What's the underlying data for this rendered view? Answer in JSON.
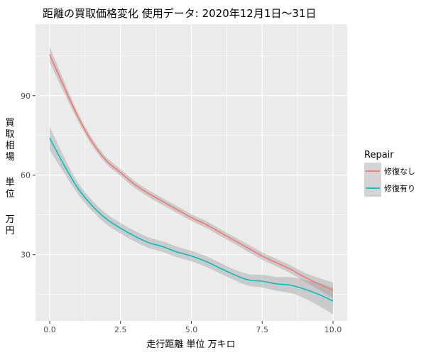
{
  "chart_data": {
    "type": "line",
    "title": "距離の買取価格変化 使用データ: 2020年12月1日～31日",
    "xlabel": "走行距離 単位 万キロ",
    "ylabel": "買取相場 単位 万円",
    "xlim": [
      -0.5,
      10.5
    ],
    "ylim": [
      5,
      117
    ],
    "x_ticks": [
      0.0,
      2.5,
      5.0,
      7.5,
      10.0
    ],
    "x_tick_labels": [
      "0.0",
      "2.5",
      "5.0",
      "7.5",
      "10.0"
    ],
    "y_ticks": [
      30,
      60,
      90
    ],
    "y_tick_labels": [
      "30",
      "60",
      "90"
    ],
    "grid": true,
    "legend": {
      "title": "Repair",
      "placement": "right"
    },
    "series": [
      {
        "name": "修復なし",
        "color": "#F8766D",
        "x": [
          0.0,
          0.5,
          1.0,
          1.5,
          2.0,
          2.5,
          3.0,
          3.5,
          4.0,
          4.5,
          5.0,
          5.5,
          6.0,
          6.5,
          7.0,
          7.5,
          8.0,
          8.5,
          9.0,
          9.5,
          10.0
        ],
        "y": [
          105.5,
          93.5,
          82.0,
          72.5,
          65.5,
          61.0,
          56.5,
          53.0,
          50.0,
          47.0,
          44.0,
          41.5,
          38.5,
          35.5,
          32.5,
          29.5,
          27.0,
          24.5,
          21.5,
          19.0,
          16.5
        ],
        "band": [
          3.0,
          2.2,
          1.6,
          1.4,
          1.3,
          1.3,
          1.3,
          1.3,
          1.3,
          1.3,
          1.3,
          1.3,
          1.3,
          1.3,
          1.4,
          1.4,
          1.4,
          1.5,
          1.7,
          2.2,
          3.0
        ]
      },
      {
        "name": "修復有り",
        "color": "#00BFC4",
        "x": [
          0.0,
          0.5,
          1.0,
          1.5,
          2.0,
          2.5,
          3.0,
          3.5,
          4.0,
          4.5,
          5.0,
          5.5,
          6.0,
          6.5,
          7.0,
          7.5,
          8.0,
          8.5,
          9.0,
          9.5,
          10.0
        ],
        "y": [
          74.0,
          64.0,
          55.0,
          48.5,
          43.5,
          40.0,
          37.0,
          34.5,
          33.0,
          31.0,
          29.5,
          27.5,
          25.0,
          22.5,
          20.5,
          20.0,
          19.0,
          18.5,
          17.0,
          15.0,
          12.5
        ],
        "band": [
          4.5,
          3.0,
          2.2,
          2.0,
          2.0,
          2.0,
          2.0,
          2.0,
          2.0,
          2.0,
          2.0,
          2.0,
          2.0,
          2.0,
          2.2,
          2.4,
          2.6,
          3.0,
          3.5,
          4.3,
          5.0
        ]
      }
    ]
  }
}
